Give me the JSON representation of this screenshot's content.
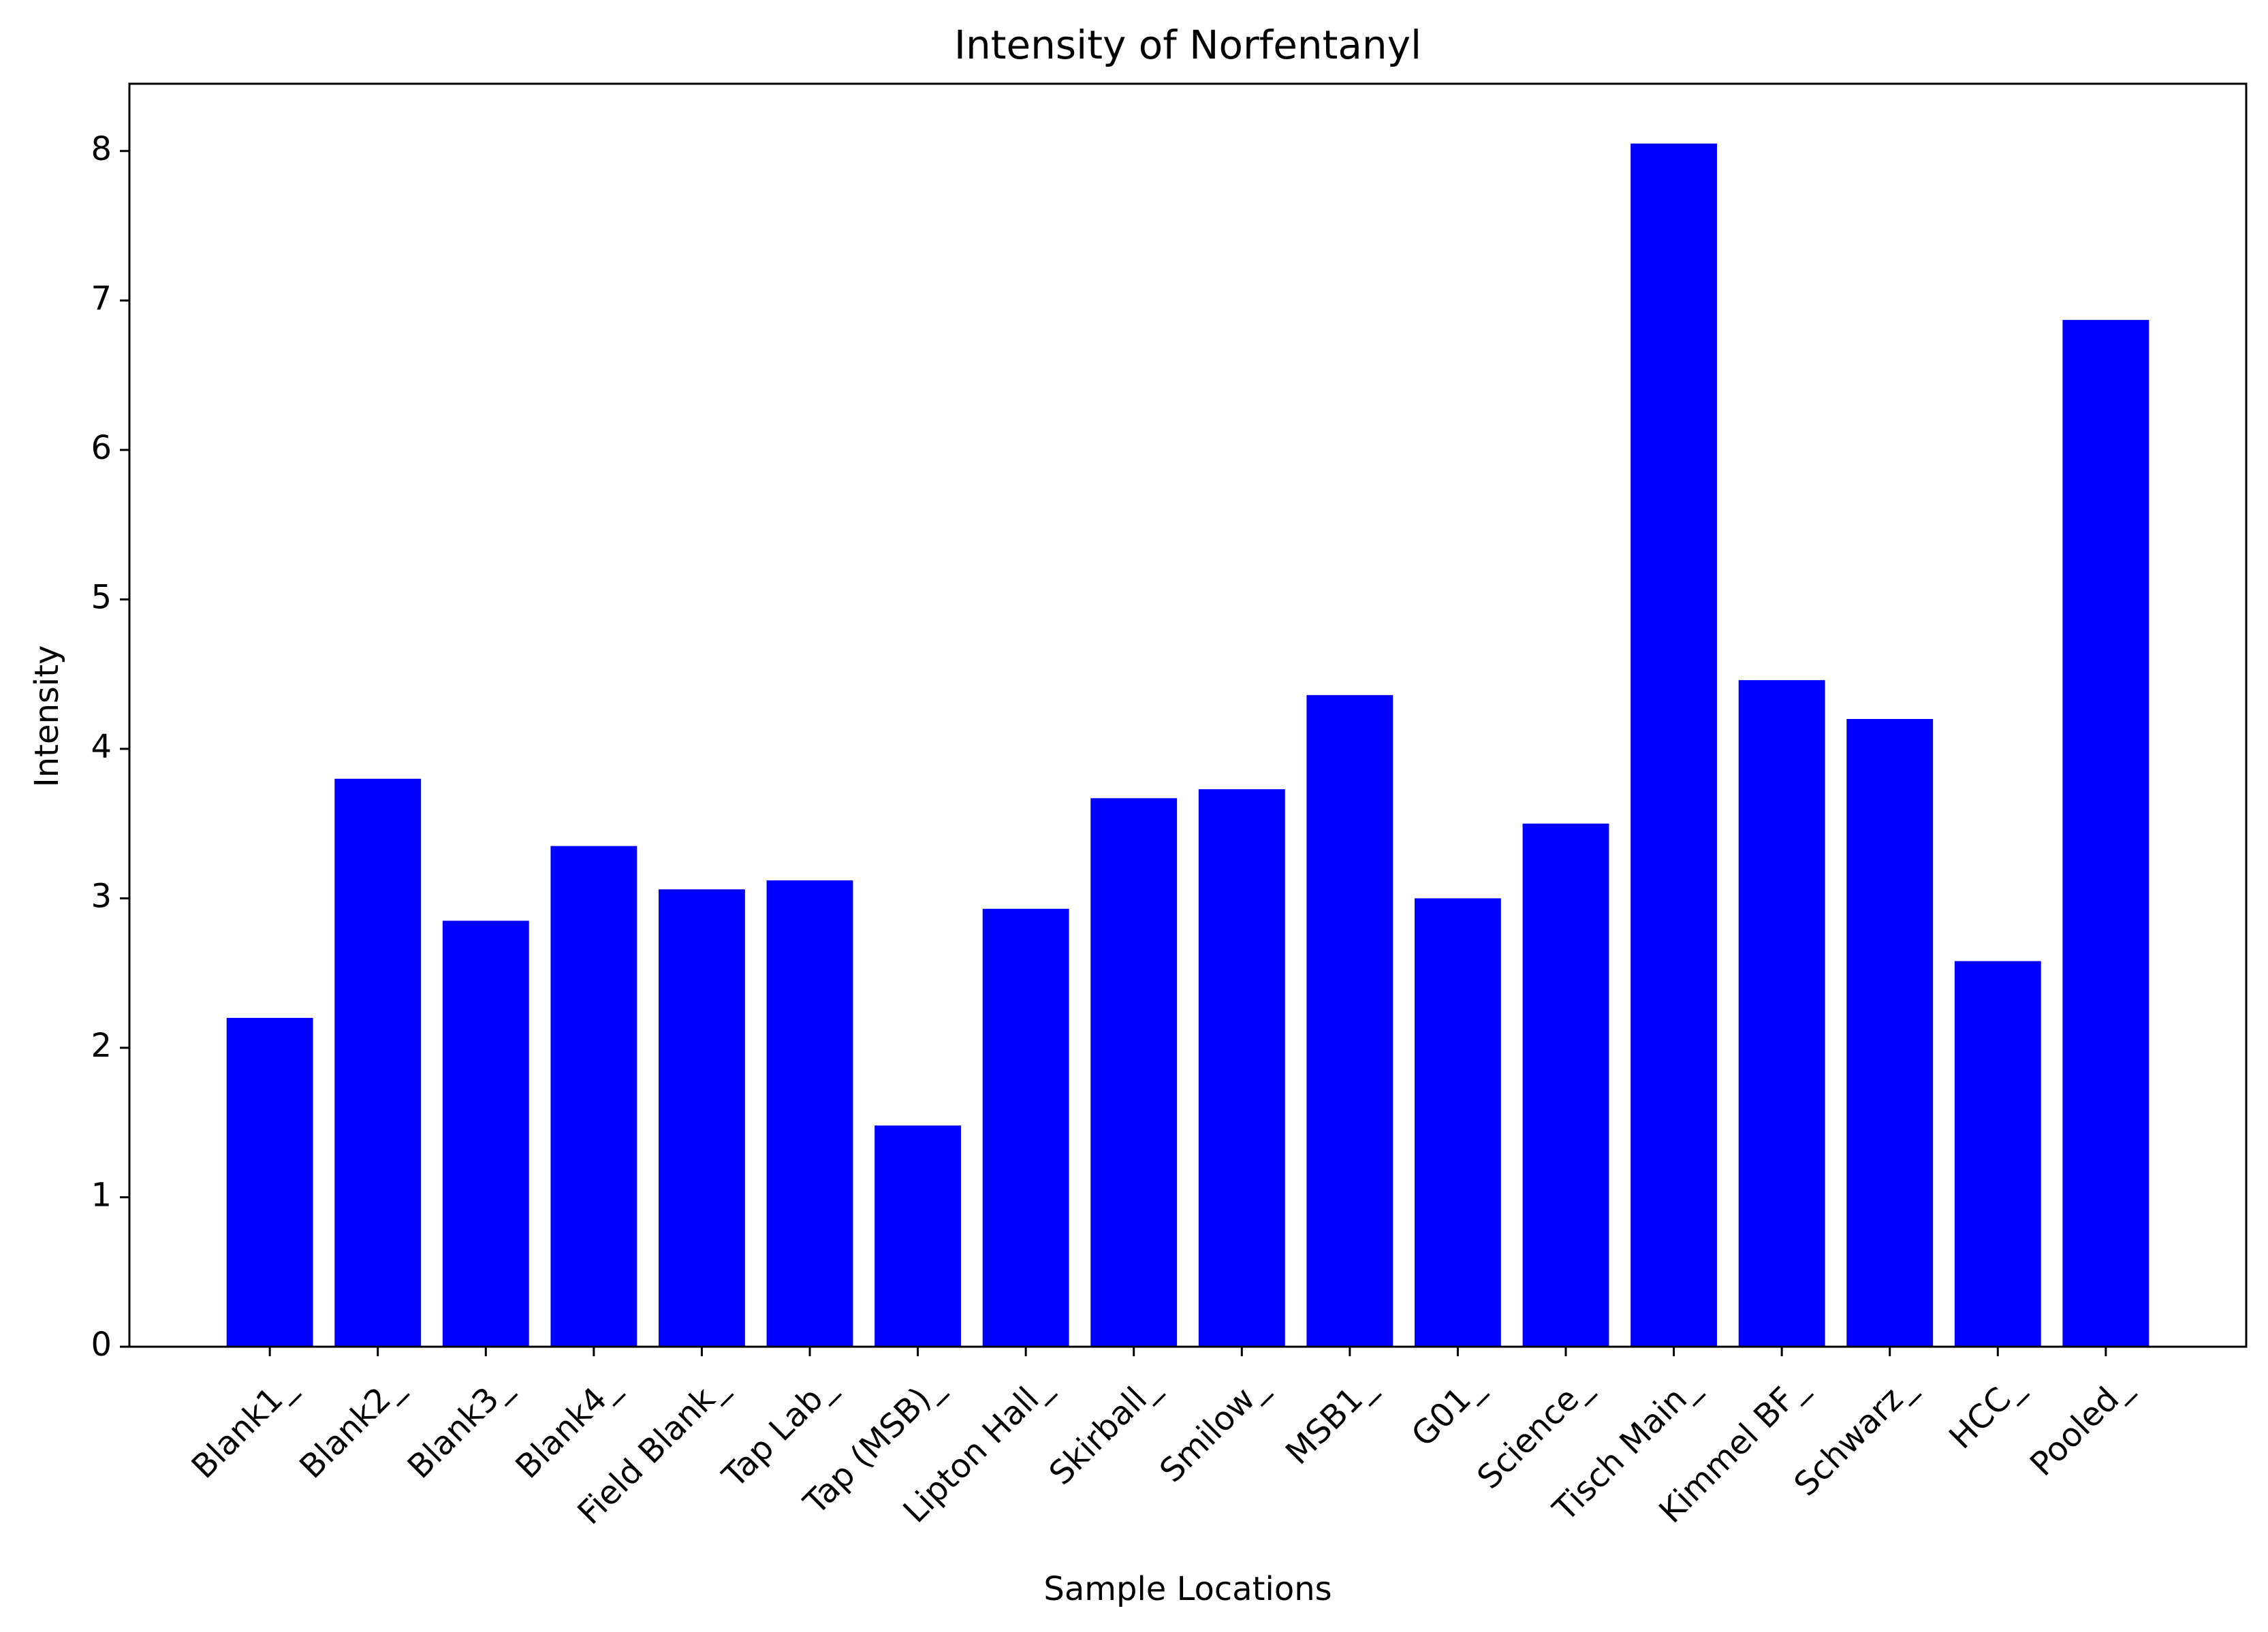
{
  "chart_data": {
    "type": "bar",
    "title": "Intensity of Norfentanyl",
    "xlabel": "Sample Locations",
    "ylabel": "Intensity",
    "categories": [
      "Blank1_",
      "Blank2_",
      "Blank3_",
      "Blank4_",
      "Field Blank_",
      "Tap Lab_",
      "Tap (MSB)_",
      "Lipton Hall_",
      "Skirball_",
      "Smilow_",
      "MSB1_",
      "G01_",
      "Science_",
      "Tisch Main_",
      "Kimmel BF_",
      "Schwarz_",
      "HCC_",
      "Pooled_"
    ],
    "values": [
      2.2,
      3.8,
      2.85,
      3.35,
      3.06,
      3.12,
      1.48,
      2.93,
      3.67,
      3.73,
      4.36,
      3.0,
      3.5,
      8.05,
      4.46,
      4.2,
      2.58,
      6.87
    ],
    "ylim": [
      0,
      8.45
    ],
    "yticks": [
      0,
      1,
      2,
      3,
      4,
      5,
      6,
      7,
      8
    ],
    "bar_color": "#0000ff",
    "grid": false,
    "legend": "none"
  }
}
